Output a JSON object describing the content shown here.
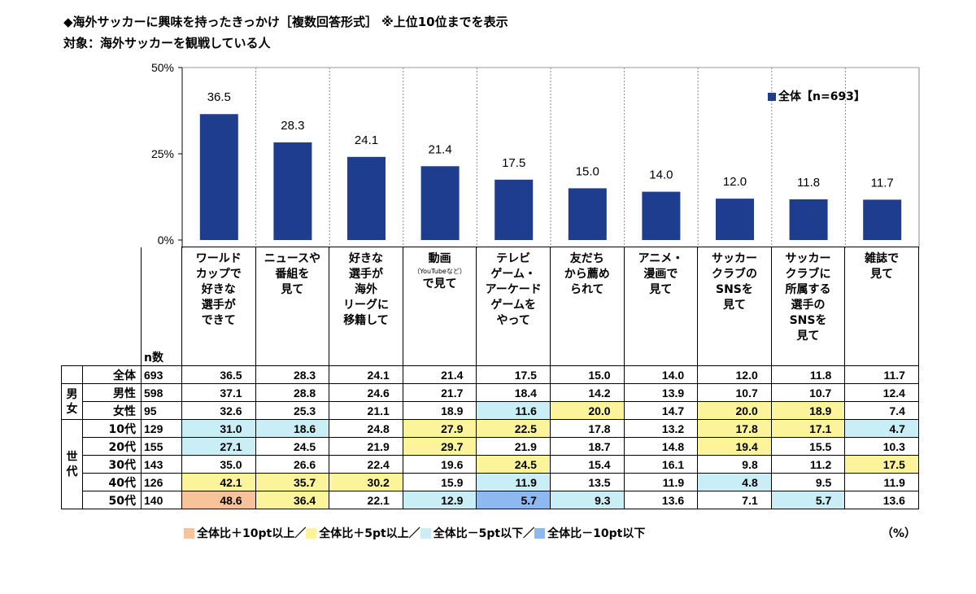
{
  "title": "◆海外サッカーに興味を持ったきっかけ［複数回答形式］ ※上位10位までを表示",
  "subtitle": "対象：海外サッカーを観戦している人",
  "legend_label": "全体【n=693】",
  "bar_color": "#1f3d8f",
  "n_header": "n数",
  "percent_unit": "（%）",
  "groups": {
    "gender": "男女",
    "age": "世代"
  },
  "rows": [
    {
      "label": "全体",
      "n": "693"
    },
    {
      "label": "男性",
      "n": "598"
    },
    {
      "label": "女性",
      "n": "95"
    },
    {
      "label": "10代",
      "n": "129"
    },
    {
      "label": "20代",
      "n": "155"
    },
    {
      "label": "30代",
      "n": "143"
    },
    {
      "label": "40代",
      "n": "126"
    },
    {
      "label": "50代",
      "n": "140"
    }
  ],
  "categories": [
    {
      "lines": [
        "ワールド",
        "カップで",
        "好きな",
        "選手が",
        "できて"
      ]
    },
    {
      "lines": [
        "ニュースや",
        "番組を",
        "見て"
      ]
    },
    {
      "lines": [
        "好きな",
        "選手が",
        "海外",
        "リーグに",
        "移籍して"
      ]
    },
    {
      "lines": [
        "動画"
      ],
      "note": "（YouTubeなど）",
      "lines2": [
        "で見て"
      ]
    },
    {
      "lines": [
        "テレビ",
        "ゲーム・",
        "アーケード",
        "ゲームを",
        "やって"
      ]
    },
    {
      "lines": [
        "友だち",
        "から薦め",
        "られて"
      ]
    },
    {
      "lines": [
        "アニメ・",
        "漫画で",
        "見て"
      ]
    },
    {
      "lines": [
        "サッカー",
        "クラブの",
        "SNSを",
        "見て"
      ]
    },
    {
      "lines": [
        "サッカー",
        "クラブに",
        "所属する",
        "選手の",
        "SNSを",
        "見て"
      ]
    },
    {
      "lines": [
        "雑誌で",
        "見て"
      ]
    }
  ],
  "table_values": [
    [
      "36.5",
      "28.3",
      "24.1",
      "21.4",
      "17.5",
      "15.0",
      "14.0",
      "12.0",
      "11.8",
      "11.7"
    ],
    [
      "37.1",
      "28.8",
      "24.6",
      "21.7",
      "18.4",
      "14.2",
      "13.9",
      "10.7",
      "10.7",
      "12.4"
    ],
    [
      "32.6",
      "25.3",
      "21.1",
      "18.9",
      "11.6",
      "20.0",
      "14.7",
      "20.0",
      "18.9",
      "7.4"
    ],
    [
      "31.0",
      "18.6",
      "24.8",
      "27.9",
      "22.5",
      "17.8",
      "13.2",
      "17.8",
      "17.1",
      "4.7"
    ],
    [
      "27.1",
      "24.5",
      "21.9",
      "29.7",
      "21.9",
      "18.7",
      "14.8",
      "19.4",
      "15.5",
      "10.3"
    ],
    [
      "35.0",
      "26.6",
      "22.4",
      "19.6",
      "24.5",
      "15.4",
      "16.1",
      "9.8",
      "11.2",
      "17.5"
    ],
    [
      "42.1",
      "35.7",
      "30.2",
      "15.9",
      "11.9",
      "13.5",
      "11.9",
      "4.8",
      "9.5",
      "11.9"
    ],
    [
      "48.6",
      "36.4",
      "22.1",
      "12.9",
      "5.7",
      "9.3",
      "13.6",
      "7.1",
      "5.7",
      "13.6"
    ]
  ],
  "table_highlights": [
    [
      "",
      "",
      "",
      "",
      "",
      "",
      "",
      "",
      "",
      ""
    ],
    [
      "",
      "",
      "",
      "",
      "",
      "",
      "",
      "",
      "",
      ""
    ],
    [
      "",
      "",
      "",
      "",
      "c",
      "y",
      "",
      "y",
      "y",
      ""
    ],
    [
      "c",
      "c",
      "",
      "y",
      "y",
      "",
      "",
      "y",
      "y",
      "c"
    ],
    [
      "c",
      "",
      "",
      "y",
      "",
      "",
      "",
      "y",
      "",
      ""
    ],
    [
      "",
      "",
      "",
      "",
      "y",
      "",
      "",
      "",
      "",
      "y"
    ],
    [
      "y",
      "y",
      "y",
      "",
      "c",
      "",
      "",
      "c",
      "",
      ""
    ],
    [
      "o",
      "y",
      "",
      "c",
      "b",
      "c",
      "",
      "",
      "c",
      ""
    ]
  ],
  "highlight_colors": {
    "o": "#f7c39b",
    "y": "#fbf49a",
    "c": "#c9eef6",
    "b": "#8db8f0"
  },
  "footer_legend": [
    {
      "key": "o",
      "label": "全体比＋10pt以上／"
    },
    {
      "key": "y",
      "label": "全体比＋5pt以上／"
    },
    {
      "key": "c",
      "label": "全体比－5pt以下／"
    },
    {
      "key": "b",
      "label": "全体比－10pt以下"
    }
  ],
  "chart_data": {
    "type": "bar",
    "title": "◆海外サッカーに興味を持ったきっかけ［複数回答形式］ ※上位10位までを表示",
    "subtitle": "対象：海外サッカーを観戦している人",
    "categories": [
      "ワールドカップで好きな選手ができて",
      "ニュースや番組を見て",
      "好きな選手が海外リーグに移籍して",
      "動画（YouTubeなど）で見て",
      "テレビゲーム・アーケードゲームをやって",
      "友だちから薦められて",
      "アニメ・漫画で見て",
      "サッカークラブのSNSを見て",
      "サッカークラブに所属する選手のSNSを見て",
      "雑誌で見て"
    ],
    "series": [
      {
        "name": "全体【n=693】",
        "values": [
          36.5,
          28.3,
          24.1,
          21.4,
          17.5,
          15.0,
          14.0,
          12.0,
          11.8,
          11.7
        ]
      }
    ],
    "value_labels": [
      "36.5",
      "28.3",
      "24.1",
      "21.4",
      "17.5",
      "15.0",
      "14.0",
      "12.0",
      "11.8",
      "11.7"
    ],
    "ylim": [
      0,
      50
    ],
    "yticks": [
      0,
      25,
      50
    ],
    "ytick_labels": [
      "0%",
      "25%",
      "50%"
    ],
    "legend": "top-right",
    "grid": false
  }
}
